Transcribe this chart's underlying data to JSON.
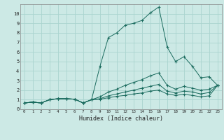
{
  "title": "",
  "xlabel": "Humidex (Indice chaleur)",
  "ylabel": "",
  "background_color": "#cce9e5",
  "grid_color": "#aad4cf",
  "line_color": "#1a6b5e",
  "xlim": [
    -0.5,
    23.5
  ],
  "ylim": [
    0,
    11
  ],
  "xticks": [
    0,
    1,
    2,
    3,
    4,
    5,
    6,
    7,
    8,
    9,
    10,
    11,
    12,
    13,
    14,
    15,
    16,
    17,
    18,
    19,
    20,
    21,
    22,
    23
  ],
  "yticks": [
    0,
    1,
    2,
    3,
    4,
    5,
    6,
    7,
    8,
    9,
    10
  ],
  "lines": [
    {
      "x": [
        0,
        1,
        2,
        3,
        4,
        5,
        6,
        7,
        8,
        9,
        10,
        11,
        12,
        13,
        14,
        15,
        16,
        17,
        18,
        19,
        20,
        21,
        22,
        23
      ],
      "y": [
        0.65,
        0.75,
        0.65,
        1.0,
        1.1,
        1.1,
        1.05,
        0.65,
        1.0,
        4.5,
        7.5,
        8.0,
        8.8,
        9.0,
        9.3,
        10.1,
        10.7,
        6.5,
        5.0,
        5.5,
        4.5,
        3.3,
        3.4,
        2.5
      ]
    },
    {
      "x": [
        0,
        1,
        2,
        3,
        4,
        5,
        6,
        7,
        8,
        9,
        10,
        11,
        12,
        13,
        14,
        15,
        16,
        17,
        18,
        19,
        20,
        21,
        22,
        23
      ],
      "y": [
        0.65,
        0.75,
        0.65,
        1.0,
        1.1,
        1.1,
        1.05,
        0.65,
        1.0,
        1.3,
        1.8,
        2.1,
        2.5,
        2.8,
        3.1,
        3.5,
        3.8,
        2.5,
        2.1,
        2.4,
        2.2,
        2.0,
        2.1,
        2.5
      ]
    },
    {
      "x": [
        0,
        1,
        2,
        3,
        4,
        5,
        6,
        7,
        8,
        9,
        10,
        11,
        12,
        13,
        14,
        15,
        16,
        17,
        18,
        19,
        20,
        21,
        22,
        23
      ],
      "y": [
        0.65,
        0.75,
        0.65,
        1.0,
        1.1,
        1.1,
        1.05,
        0.65,
        1.0,
        1.1,
        1.4,
        1.6,
        1.8,
        2.0,
        2.2,
        2.4,
        2.6,
        1.9,
        1.7,
        1.9,
        1.8,
        1.6,
        1.75,
        2.5
      ]
    },
    {
      "x": [
        0,
        1,
        2,
        3,
        4,
        5,
        6,
        7,
        8,
        9,
        10,
        11,
        12,
        13,
        14,
        15,
        16,
        17,
        18,
        19,
        20,
        21,
        22,
        23
      ],
      "y": [
        0.65,
        0.75,
        0.65,
        1.0,
        1.1,
        1.1,
        1.05,
        0.65,
        1.0,
        1.05,
        1.2,
        1.35,
        1.45,
        1.6,
        1.7,
        1.9,
        2.0,
        1.6,
        1.45,
        1.55,
        1.45,
        1.3,
        1.4,
        2.5
      ]
    }
  ]
}
